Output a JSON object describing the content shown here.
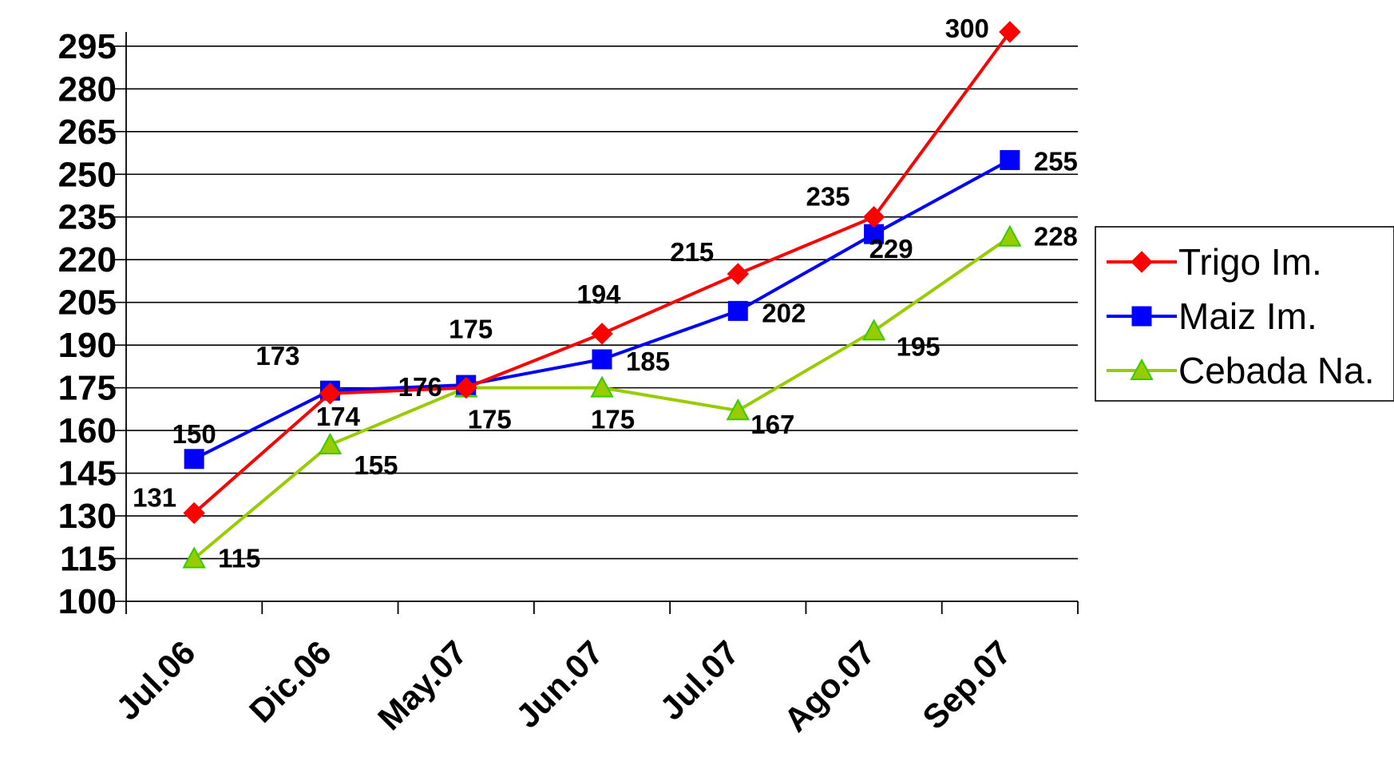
{
  "chart_data": {
    "type": "line",
    "categories": [
      "Jul.06",
      "Dic.06",
      "May.07",
      "Jun.07",
      "Jul.07",
      "Ago.07",
      "Sep.07"
    ],
    "series": [
      {
        "name": "Trigo Im.",
        "values": [
          131,
          173,
          175,
          194,
          215,
          235,
          300
        ],
        "color": "#ff0000",
        "marker": "diamond"
      },
      {
        "name": "Maiz Im.",
        "values": [
          150,
          174,
          176,
          185,
          202,
          229,
          255
        ],
        "color": "#0000ff",
        "marker": "square"
      },
      {
        "name": "Cebada Na.",
        "values": [
          115,
          155,
          175,
          175,
          167,
          195,
          228
        ],
        "color": "#99cc00",
        "marker": "triangle"
      }
    ],
    "yticks": [
      100,
      115,
      130,
      145,
      160,
      175,
      190,
      205,
      220,
      235,
      250,
      265,
      280,
      295
    ],
    "ylim": [
      100,
      300
    ],
    "grid": true,
    "legend": "right"
  }
}
